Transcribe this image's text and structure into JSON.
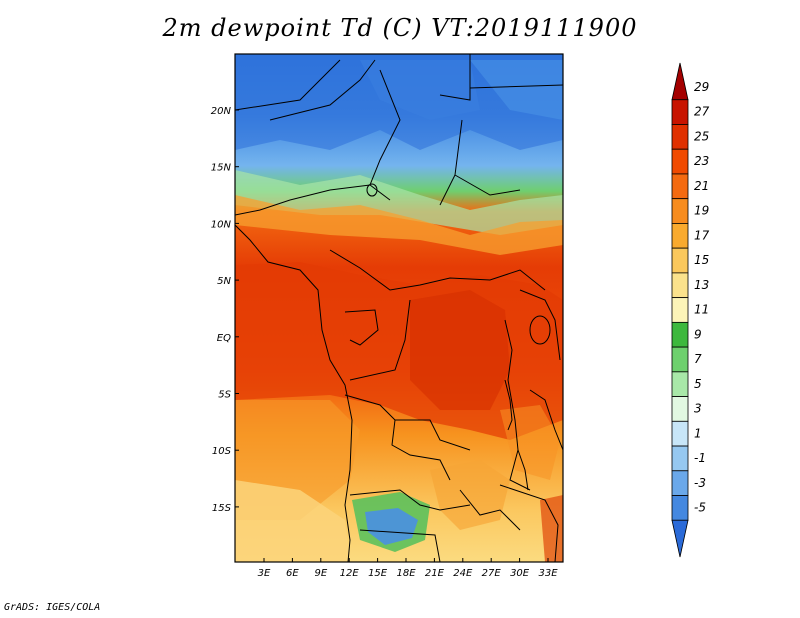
{
  "title": "2m dewpoint Td (C) VT:2019111900",
  "credit": "GrADS: IGES/COLA",
  "map": {
    "lon_labels": [
      "3E",
      "6E",
      "9E",
      "12E",
      "15E",
      "18E",
      "21E",
      "24E",
      "27E",
      "30E",
      "33E"
    ],
    "lat_labels": [
      "20N",
      "15N",
      "10N",
      "5N",
      "EQ",
      "5S",
      "10S",
      "15S"
    ]
  },
  "colorbar": {
    "levels": [
      "29",
      "27",
      "25",
      "23",
      "21",
      "19",
      "17",
      "15",
      "13",
      "11",
      "9",
      "7",
      "5",
      "3",
      "1",
      "-1",
      "-3",
      "-5"
    ],
    "colors": [
      "#a40000",
      "#c81400",
      "#e03000",
      "#f04a00",
      "#f46a10",
      "#f78c1e",
      "#f9aa2e",
      "#fbc85c",
      "#fbe28c",
      "#fcf4b8",
      "#3db83d",
      "#6dd06d",
      "#a8e8a8",
      "#e2f8e2",
      "#c8e6f8",
      "#96c8f0",
      "#6aa8ea",
      "#4488e0",
      "#2a6ad8"
    ]
  }
}
